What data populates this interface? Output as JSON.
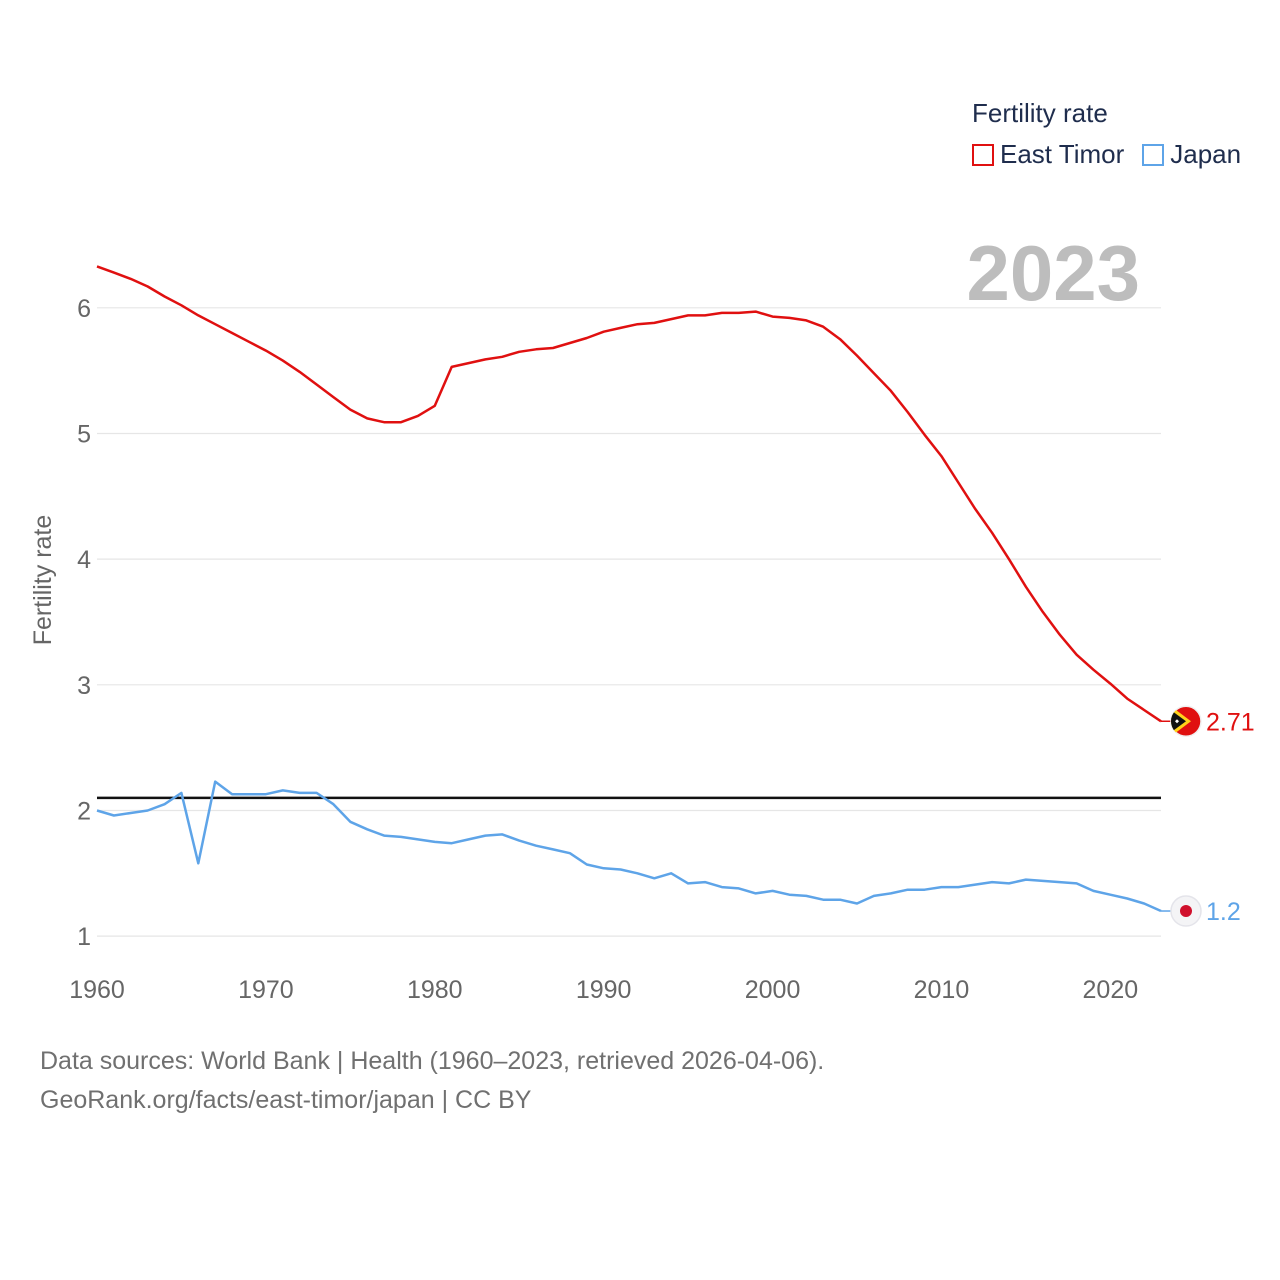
{
  "chart_data": {
    "type": "line",
    "year_label": "2023",
    "ylabel": "Fertility rate",
    "xlim": [
      1960,
      2023
    ],
    "ylim": [
      0.85,
      6.5
    ],
    "x_ticks": [
      1960,
      1970,
      1980,
      1990,
      2000,
      2010,
      2020
    ],
    "y_ticks": [
      1,
      2,
      3,
      4,
      5,
      6
    ],
    "reference_line": {
      "value": 2.1,
      "color": "#111111"
    },
    "legend": {
      "title": "Fertility rate",
      "items": [
        {
          "name": "East Timor",
          "color": "#e01010"
        },
        {
          "name": "Japan",
          "color": "#5ea4e8"
        }
      ]
    },
    "series": [
      {
        "name": "East Timor",
        "color": "#e01010",
        "end_label": "2.71",
        "x": [
          1960,
          1961,
          1962,
          1963,
          1964,
          1965,
          1966,
          1967,
          1968,
          1969,
          1970,
          1971,
          1972,
          1973,
          1974,
          1975,
          1976,
          1977,
          1978,
          1979,
          1980,
          1981,
          1982,
          1983,
          1984,
          1985,
          1986,
          1987,
          1988,
          1989,
          1990,
          1991,
          1992,
          1993,
          1994,
          1995,
          1996,
          1997,
          1998,
          1999,
          2000,
          2001,
          2002,
          2003,
          2004,
          2005,
          2006,
          2007,
          2008,
          2009,
          2010,
          2011,
          2012,
          2013,
          2014,
          2015,
          2016,
          2017,
          2018,
          2019,
          2020,
          2021,
          2022,
          2023
        ],
        "values": [
          6.33,
          6.28,
          6.23,
          6.17,
          6.09,
          6.02,
          5.94,
          5.87,
          5.8,
          5.73,
          5.66,
          5.58,
          5.49,
          5.39,
          5.29,
          5.19,
          5.12,
          5.09,
          5.09,
          5.14,
          5.22,
          5.53,
          5.56,
          5.59,
          5.61,
          5.65,
          5.67,
          5.68,
          5.72,
          5.76,
          5.81,
          5.84,
          5.87,
          5.88,
          5.91,
          5.94,
          5.94,
          5.96,
          5.96,
          5.97,
          5.93,
          5.92,
          5.9,
          5.85,
          5.75,
          5.62,
          5.48,
          5.34,
          5.17,
          4.99,
          4.82,
          4.61,
          4.4,
          4.21,
          4.0,
          3.78,
          3.58,
          3.4,
          3.24,
          3.12,
          3.01,
          2.89,
          2.8,
          2.71
        ]
      },
      {
        "name": "Japan",
        "color": "#5ea4e8",
        "end_label": "1.2",
        "x": [
          1960,
          1961,
          1962,
          1963,
          1964,
          1965,
          1966,
          1967,
          1968,
          1969,
          1970,
          1971,
          1972,
          1973,
          1974,
          1975,
          1976,
          1977,
          1978,
          1979,
          1980,
          1981,
          1982,
          1983,
          1984,
          1985,
          1986,
          1987,
          1988,
          1989,
          1990,
          1991,
          1992,
          1993,
          1994,
          1995,
          1996,
          1997,
          1998,
          1999,
          2000,
          2001,
          2002,
          2003,
          2004,
          2005,
          2006,
          2007,
          2008,
          2009,
          2010,
          2011,
          2012,
          2013,
          2014,
          2015,
          2016,
          2017,
          2018,
          2019,
          2020,
          2021,
          2022,
          2023
        ],
        "values": [
          2.0,
          1.96,
          1.98,
          2.0,
          2.05,
          2.14,
          1.58,
          2.23,
          2.13,
          2.13,
          2.13,
          2.16,
          2.14,
          2.14,
          2.05,
          1.91,
          1.85,
          1.8,
          1.79,
          1.77,
          1.75,
          1.74,
          1.77,
          1.8,
          1.81,
          1.76,
          1.72,
          1.69,
          1.66,
          1.57,
          1.54,
          1.53,
          1.5,
          1.46,
          1.5,
          1.42,
          1.43,
          1.39,
          1.38,
          1.34,
          1.36,
          1.33,
          1.32,
          1.29,
          1.29,
          1.26,
          1.32,
          1.34,
          1.37,
          1.37,
          1.39,
          1.39,
          1.41,
          1.43,
          1.42,
          1.45,
          1.44,
          1.43,
          1.42,
          1.36,
          1.33,
          1.3,
          1.26,
          1.2
        ]
      }
    ]
  },
  "footer": {
    "line1": "Data sources: World Bank | Health (1960–2023, retrieved 2026-04-06).",
    "line2": "GeoRank.org/facts/east-timor/japan | CC BY"
  }
}
